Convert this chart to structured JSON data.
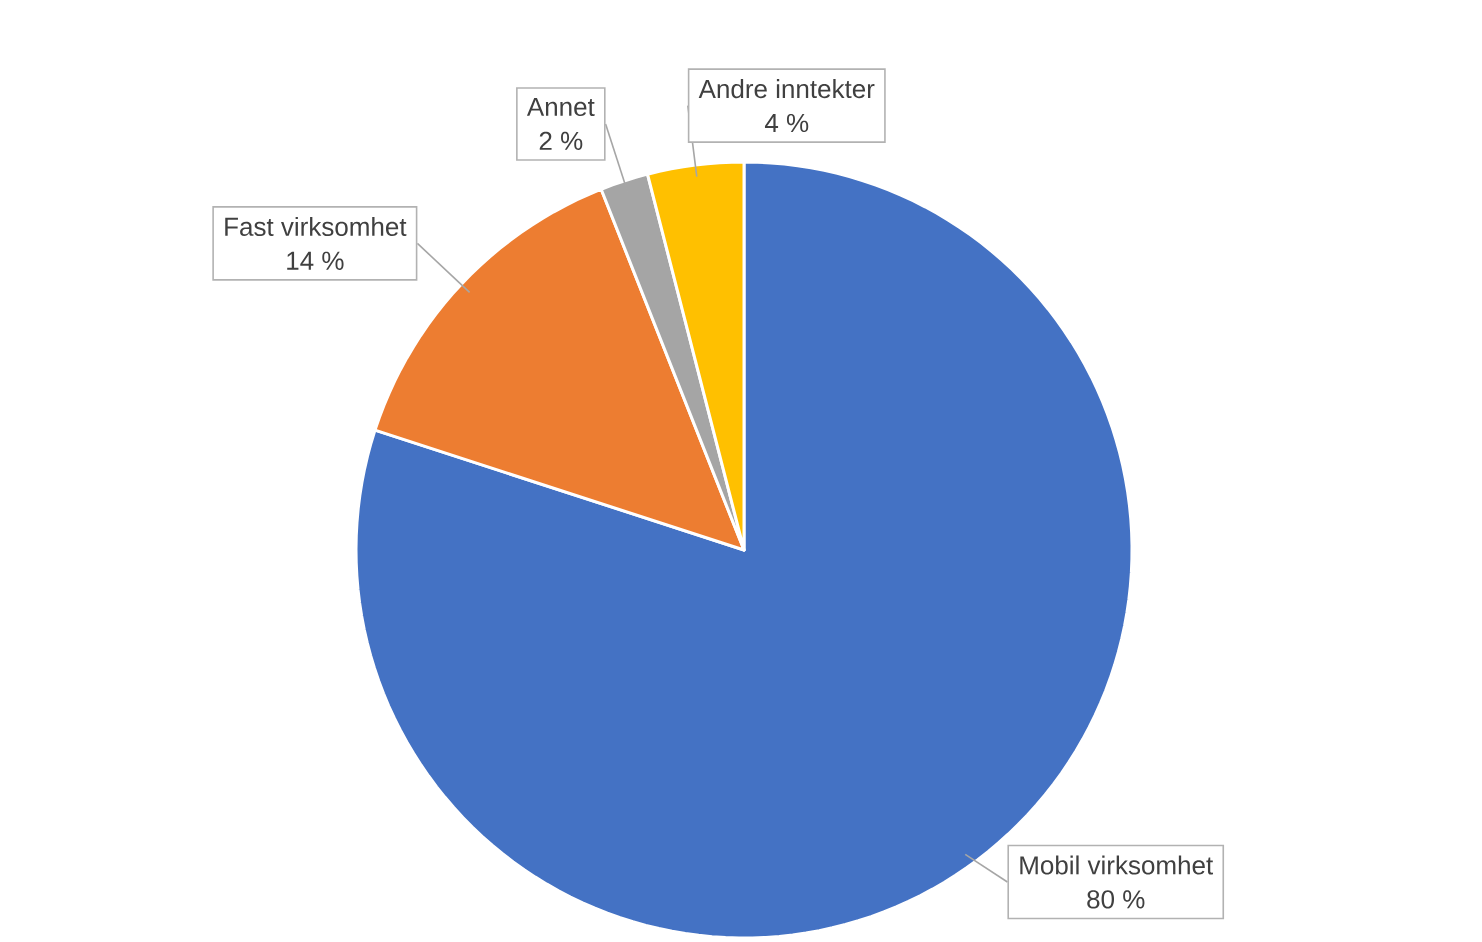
{
  "chart_data": {
    "type": "pie",
    "categories": [
      "Mobil virksomhet",
      "Fast virksomhet",
      "Annet",
      "Andre inntekter"
    ],
    "values": [
      80,
      14,
      2,
      4
    ],
    "colors": [
      "#4472c4",
      "#ed7d31",
      "#a5a5a5",
      "#ffc000"
    ],
    "value_labels": [
      "80 %",
      "14 %",
      "2 %",
      "4 %"
    ]
  }
}
